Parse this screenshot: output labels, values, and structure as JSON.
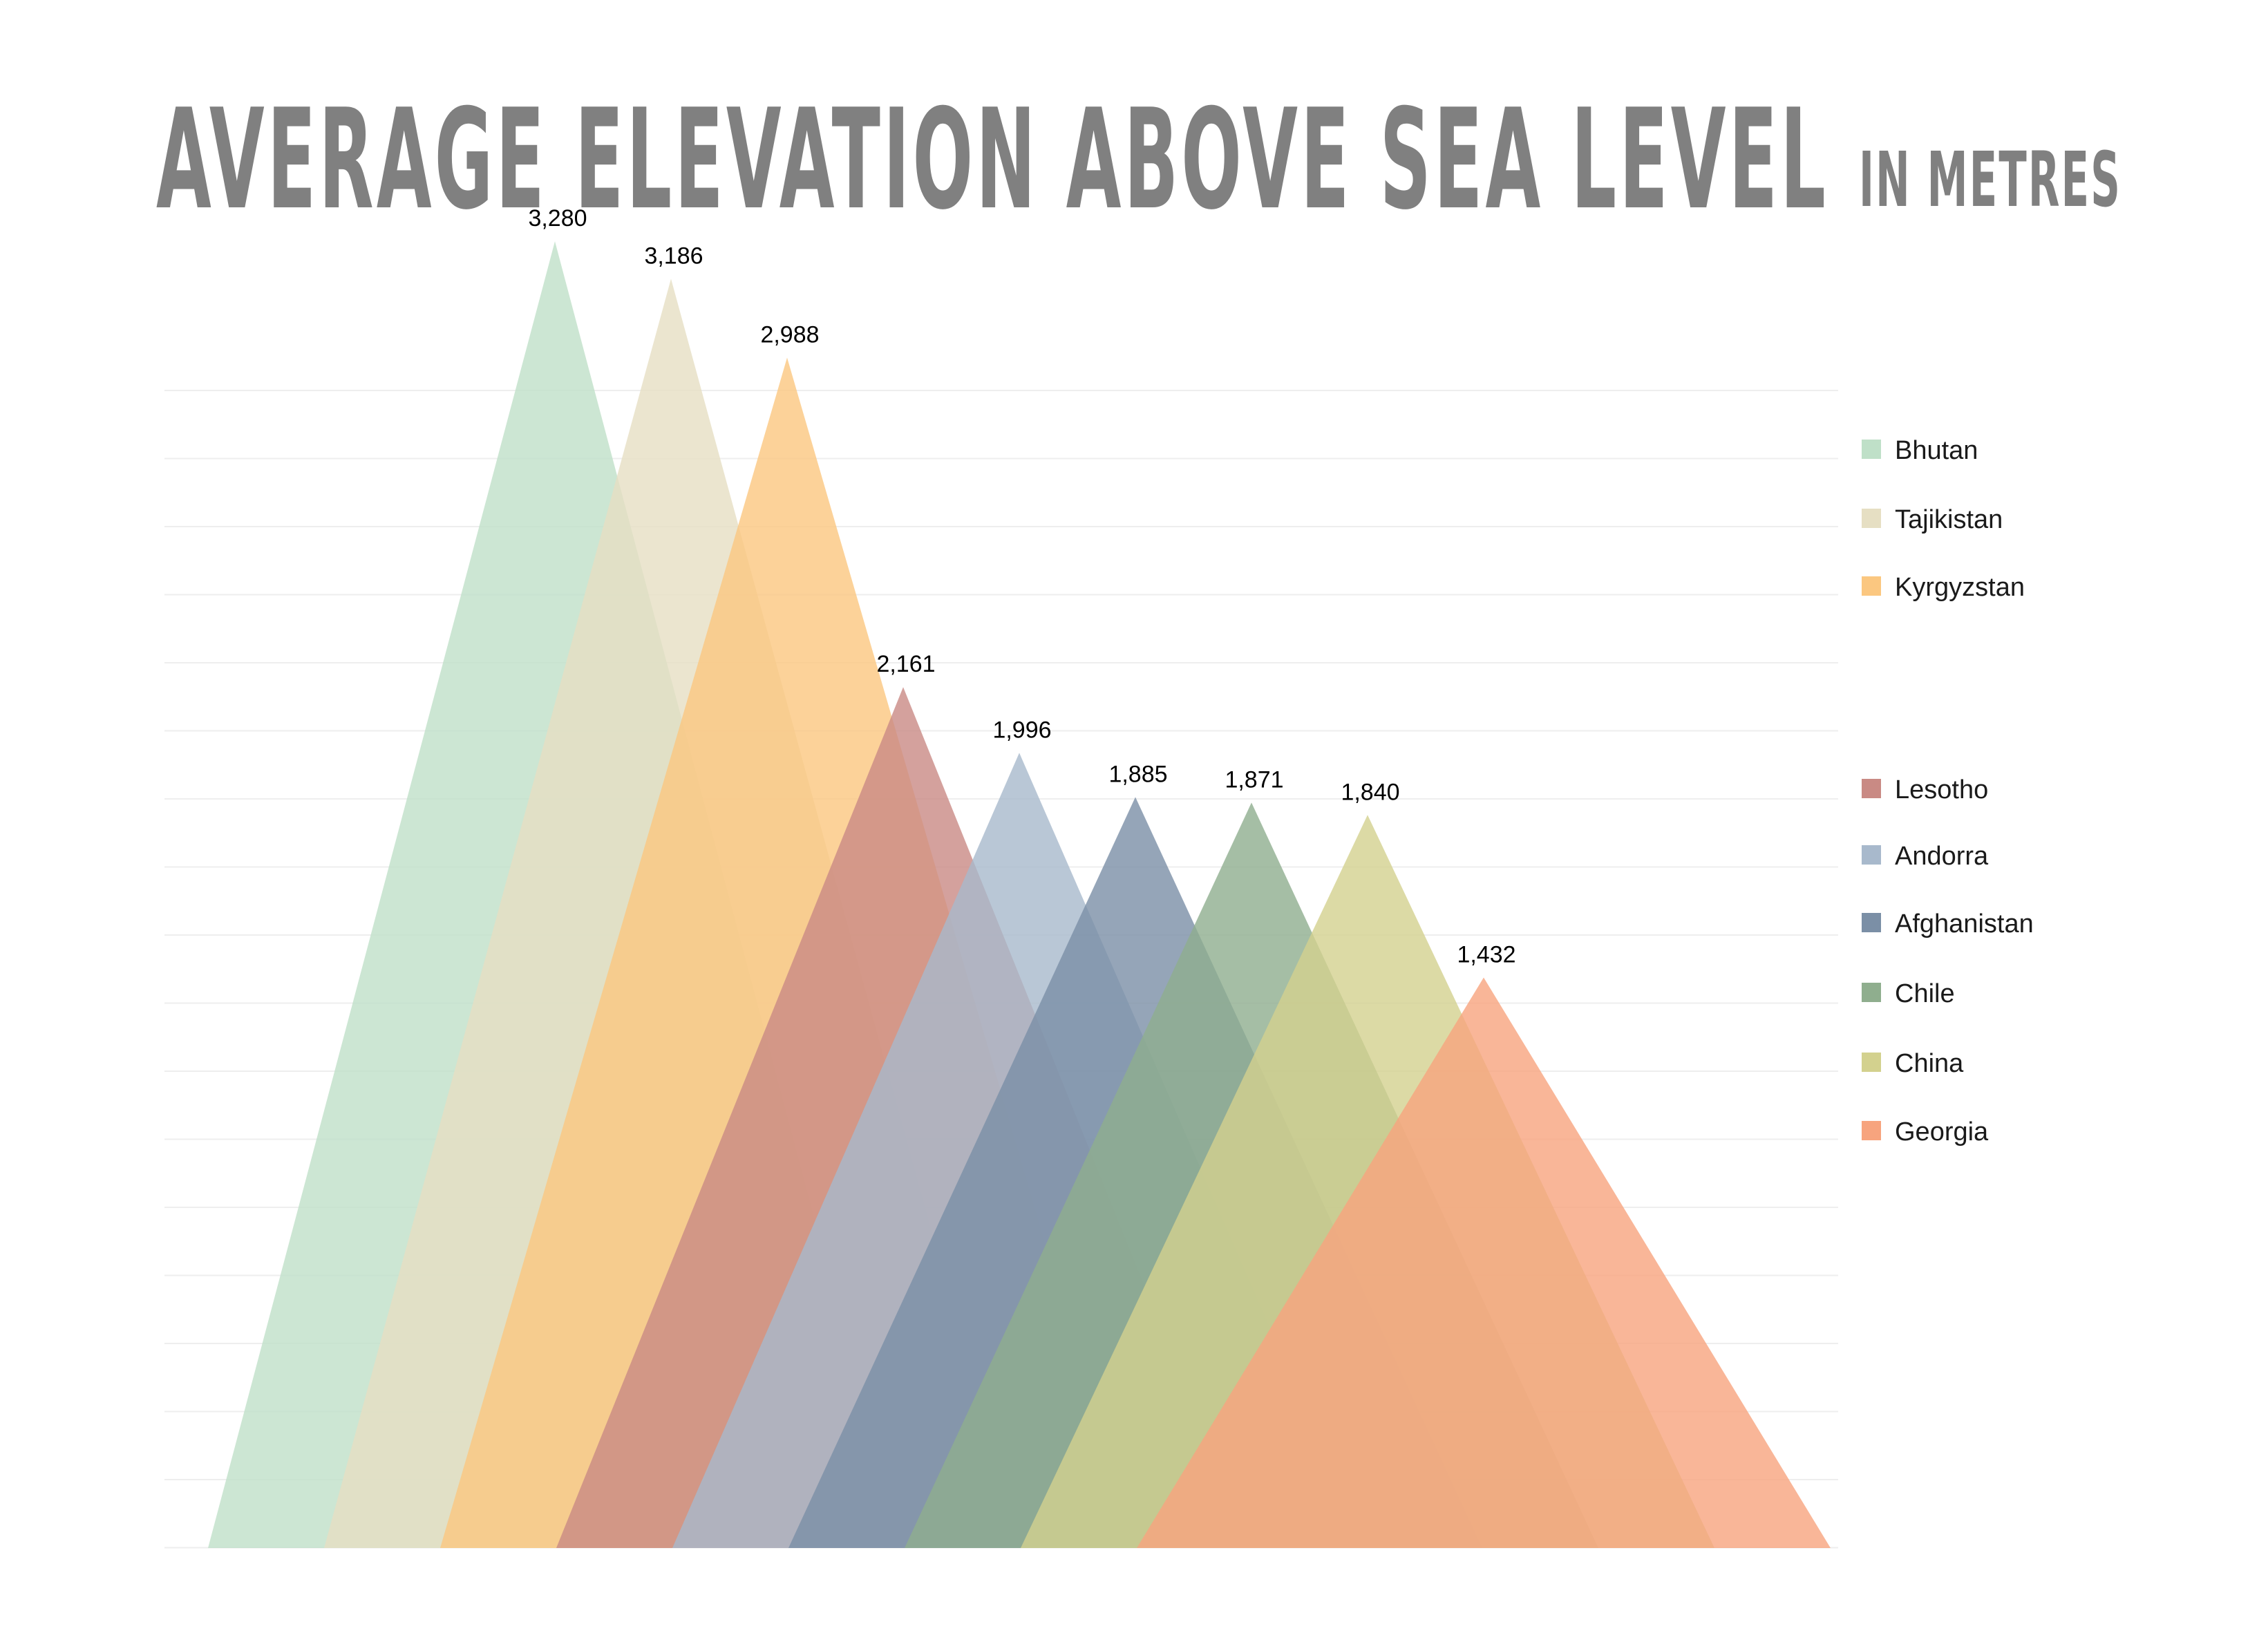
{
  "chart_data": {
    "type": "area",
    "title": "AVERAGE ELEVATION ABOVE SEA LEVEL",
    "subtitle": "IN METRES",
    "xlabel": "",
    "ylabel": "",
    "ylim": [
      0,
      3400
    ],
    "grid": true,
    "legend_position": "right",
    "value_labels": [
      "3,280",
      "3,186",
      "2,988",
      "2,161",
      "1,996",
      "1,885",
      "1,871",
      "1,840",
      "1,432"
    ],
    "series": [
      {
        "name": "Bhutan",
        "value": 3280,
        "color": "#bfe0c8"
      },
      {
        "name": "Tajikistan",
        "value": 3186,
        "color": "#e6dfc3"
      },
      {
        "name": "Kyrgyzstan",
        "value": 2988,
        "color": "#fbc780"
      },
      {
        "name": "Lesotho",
        "value": 2161,
        "color": "#c98a84"
      },
      {
        "name": "Andorra",
        "value": 1996,
        "color": "#a8b9cc"
      },
      {
        "name": "Afghanistan",
        "value": 1885,
        "color": "#7b8fa6"
      },
      {
        "name": "Chile",
        "value": 1871,
        "color": "#8fae8e"
      },
      {
        "name": "China",
        "value": 1840,
        "color": "#d3d18e"
      },
      {
        "name": "Georgia",
        "value": 1432,
        "color": "#f7a47e"
      }
    ]
  }
}
